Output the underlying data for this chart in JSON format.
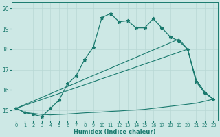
{
  "title": "",
  "xlabel": "Humidex (Indice chaleur)",
  "xlim": [
    -0.5,
    23.5
  ],
  "ylim": [
    14.5,
    20.3
  ],
  "yticks": [
    15,
    16,
    17,
    18,
    19,
    20
  ],
  "xticks": [
    0,
    1,
    2,
    3,
    4,
    5,
    6,
    7,
    8,
    9,
    10,
    11,
    12,
    13,
    14,
    15,
    16,
    17,
    18,
    19,
    20,
    21,
    22,
    23
  ],
  "bg_color": "#cde8e5",
  "line_color": "#1a7a6e",
  "grid_color": "#b8d8d4",
  "series": [
    {
      "x": [
        0,
        1,
        2,
        3,
        4,
        5,
        6,
        7,
        8,
        9,
        10,
        11,
        12,
        13,
        14,
        15,
        16,
        17,
        18,
        19,
        20,
        21,
        22,
        23
      ],
      "y": [
        15.1,
        14.9,
        14.85,
        14.8,
        14.78,
        14.8,
        14.82,
        14.85,
        14.88,
        14.9,
        14.92,
        14.95,
        14.97,
        15.0,
        15.02,
        15.05,
        15.1,
        15.15,
        15.2,
        15.25,
        15.3,
        15.35,
        15.45,
        15.55
      ],
      "marker": null,
      "linestyle": "-",
      "linewidth": 0.8
    },
    {
      "x": [
        0,
        20,
        21,
        22,
        23
      ],
      "y": [
        15.1,
        18.0,
        16.5,
        15.9,
        15.55
      ],
      "marker": null,
      "linestyle": "-",
      "linewidth": 0.8
    },
    {
      "x": [
        0,
        19,
        20,
        21,
        22,
        23
      ],
      "y": [
        15.1,
        18.5,
        18.0,
        16.5,
        15.9,
        15.55
      ],
      "marker": null,
      "linestyle": "-",
      "linewidth": 0.8
    },
    {
      "x": [
        0,
        1,
        2,
        3,
        4,
        5,
        6,
        7,
        8,
        9,
        10,
        11,
        12,
        13,
        14,
        15,
        16,
        17,
        18,
        19,
        20,
        21,
        22,
        23
      ],
      "y": [
        15.1,
        14.9,
        14.8,
        14.7,
        15.1,
        15.5,
        16.3,
        16.7,
        17.5,
        18.1,
        19.55,
        19.75,
        19.35,
        19.4,
        19.05,
        19.05,
        19.5,
        19.05,
        18.6,
        18.4,
        18.0,
        16.4,
        15.85,
        15.55
      ],
      "marker": "*",
      "markersize": 3.5,
      "linestyle": "-",
      "linewidth": 0.9
    }
  ]
}
